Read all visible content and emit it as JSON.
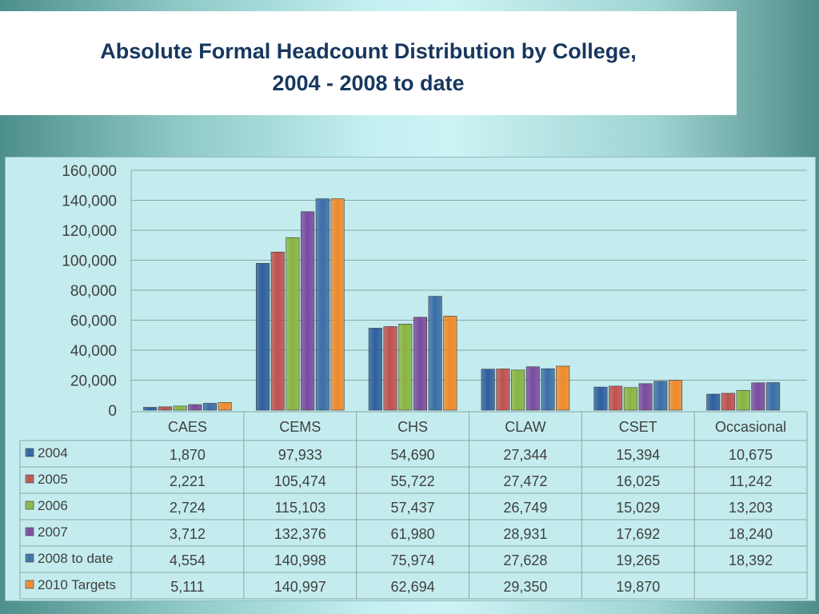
{
  "title_line1": "Absolute Formal Headcount Distribution by College,",
  "title_line2": "2004 - 2008 to date",
  "chart_data": {
    "type": "bar",
    "title": "Absolute Formal Headcount Distribution by College, 2004 - 2008 to date",
    "categories": [
      "CAES",
      "CEMS",
      "CHS",
      "CLAW",
      "CSET",
      "Occasional"
    ],
    "yticks": [
      "0",
      "20,000",
      "40,000",
      "60,000",
      "80,000",
      "100,000",
      "120,000",
      "140,000",
      "160,000"
    ],
    "ylim": [
      0,
      160000
    ],
    "grid": true,
    "legend": "data-table",
    "series": [
      {
        "name": "2004",
        "color": "#2e5f9e",
        "values": [
          1870,
          97933,
          54690,
          27344,
          15394,
          10675
        ],
        "labels": [
          "1,870",
          "97,933",
          "54,690",
          "27,344",
          "15,394",
          "10,675"
        ]
      },
      {
        "name": "2005",
        "color": "#c0504d",
        "values": [
          2221,
          105474,
          55722,
          27472,
          16025,
          11242
        ],
        "labels": [
          "2,221",
          "105,474",
          "55,722",
          "27,472",
          "16,025",
          "11,242"
        ]
      },
      {
        "name": "2006",
        "color": "#8ab43f",
        "values": [
          2724,
          115103,
          57437,
          26749,
          15029,
          13203
        ],
        "labels": [
          "2,724",
          "115,103",
          "57,437",
          "26,749",
          "15,029",
          "13,203"
        ]
      },
      {
        "name": "2007",
        "color": "#7a4a9e",
        "values": [
          3712,
          132376,
          61980,
          28931,
          17692,
          18240
        ],
        "labels": [
          "3,712",
          "132,376",
          "61,980",
          "28,931",
          "17,692",
          "18,240"
        ]
      },
      {
        "name": "2008 to date",
        "color": "#3a6ea5",
        "values": [
          4554,
          140998,
          75974,
          27628,
          19265,
          18392
        ],
        "labels": [
          "4,554",
          "140,998",
          "75,974",
          "27,628",
          "19,265",
          "18,392"
        ]
      },
      {
        "name": "2010 Targets",
        "color": "#f0892a",
        "values": [
          5111,
          140997,
          62694,
          29350,
          19870,
          null
        ],
        "labels": [
          "5,111",
          "140,997",
          "62,694",
          "29,350",
          "19,870",
          ""
        ]
      }
    ]
  }
}
